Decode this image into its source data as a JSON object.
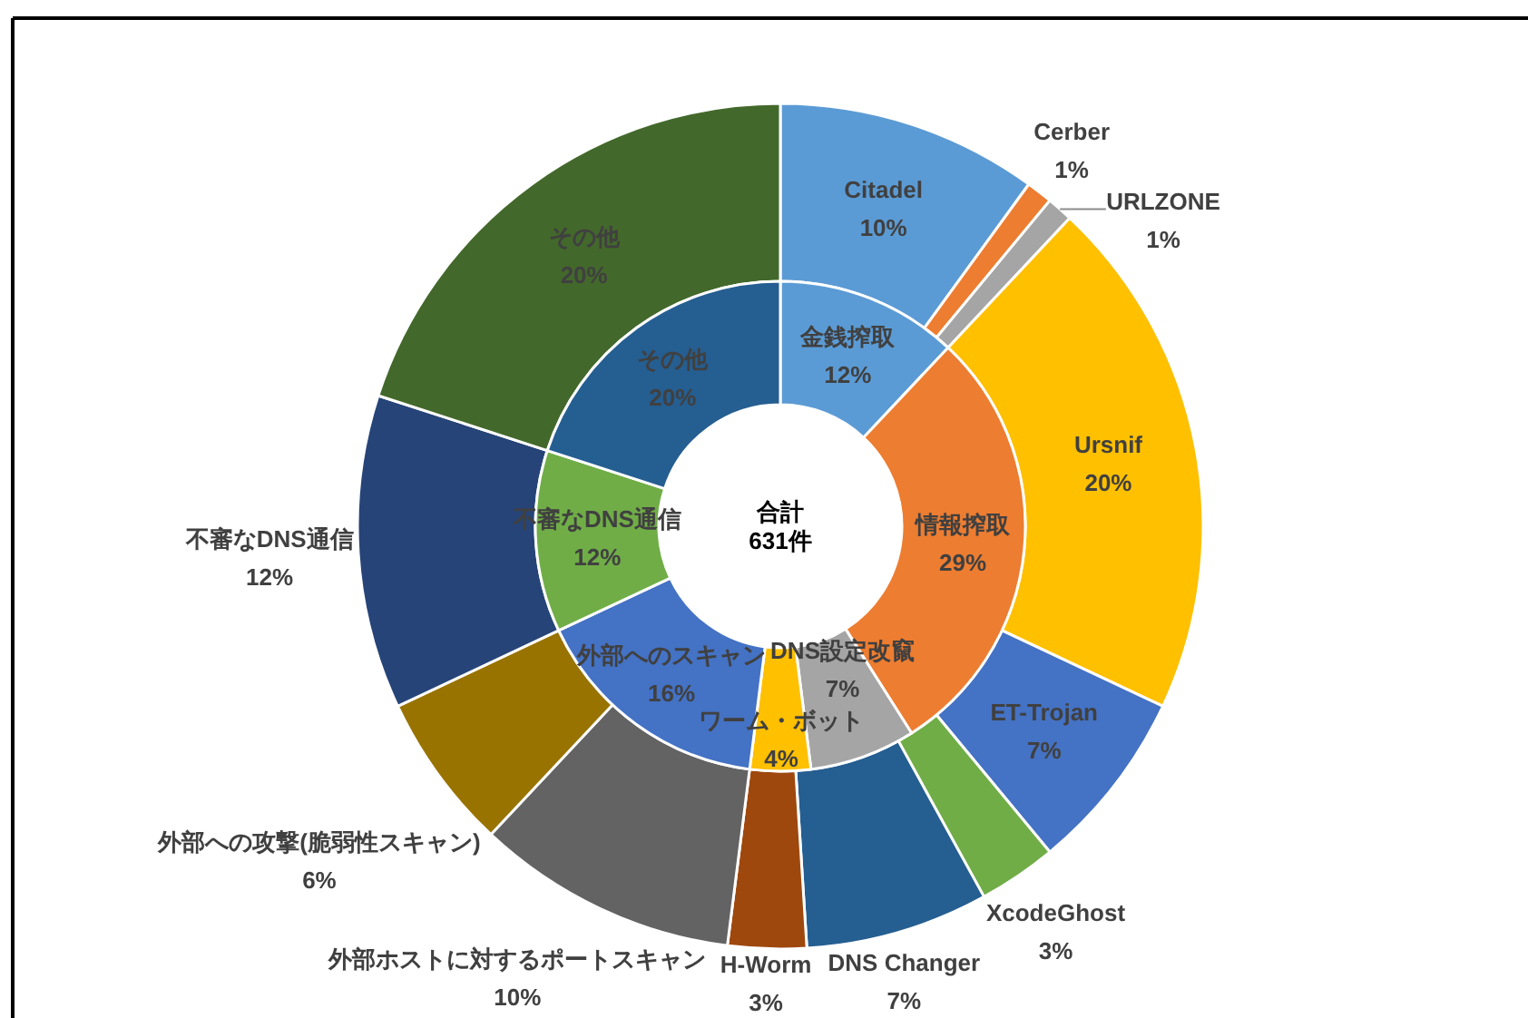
{
  "chart_data": [
    {
      "type": "donut",
      "categories": [
        "金銭搾取",
        "情報搾取",
        "DNS設定改竄",
        "ワーム・ボット",
        "外部へのスキャン",
        "不審なDNS通信",
        "その他"
      ],
      "values": [
        12,
        29,
        7,
        4,
        16,
        12,
        20
      ],
      "colors": [
        "#5b9bd5",
        "#ed7d31",
        "#a5a5a5",
        "#ffc000",
        "#4472c4",
        "#70ad47",
        "#255e91"
      ],
      "value_labels": [
        "12%",
        "29%",
        "7%",
        "4%",
        "16%",
        "12%",
        "20%"
      ],
      "annotations": [
        "合計\n631件"
      ]
    },
    {
      "type": "donut",
      "categories": [
        "Citadel",
        "Cerber",
        "URLZONE",
        "Ursnif",
        "ET-Trojan",
        "XcodeGhost",
        "DNS Changer",
        "H-Worm",
        "外部ホストに対するポートスキャン",
        "外部への攻撃(脆弱性スキャン)",
        "不審なDNS通信",
        "その他"
      ],
      "values": [
        10,
        1,
        1,
        20,
        7,
        3,
        7,
        3,
        10,
        6,
        12,
        20
      ],
      "colors": [
        "#5b9bd5",
        "#ed7d31",
        "#a5a5a5",
        "#ffc000",
        "#4472c4",
        "#70ad47",
        "#255e91",
        "#9e480e",
        "#636363",
        "#997300",
        "#264478",
        "#43682b"
      ],
      "value_labels": [
        "10%",
        "1%",
        "1%",
        "20%",
        "7%",
        "3%",
        "7%",
        "3%",
        "10%",
        "6%",
        "12%",
        "20%"
      ]
    }
  ]
}
